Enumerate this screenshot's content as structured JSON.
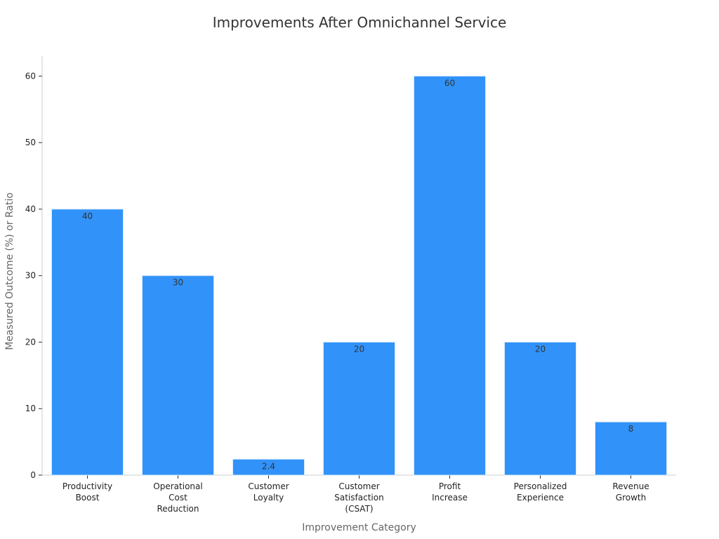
{
  "chart_data": {
    "type": "bar",
    "title": "Improvements After Omnichannel Service",
    "xlabel": "Improvement Category",
    "ylabel": "Measured Outcome (%) or Ratio",
    "categories": [
      [
        "Productivity",
        "Boost"
      ],
      [
        "Operational",
        "Cost",
        "Reduction"
      ],
      [
        "Customer",
        "Loyalty"
      ],
      [
        "Customer",
        "Satisfaction",
        "(CSAT)"
      ],
      [
        "Profit",
        "Increase"
      ],
      [
        "Personalized",
        "Experience"
      ],
      [
        "Revenue",
        "Growth"
      ]
    ],
    "values": [
      40,
      30,
      2.4,
      20,
      60,
      20,
      8
    ],
    "data_labels": [
      "40",
      "30",
      "2.4",
      "20",
      "60",
      "20",
      "8"
    ],
    "ylim": [
      0,
      63
    ],
    "yticks": [
      0,
      10,
      20,
      30,
      40,
      50,
      60
    ],
    "grid": false,
    "bar_color": "#3192f9",
    "legend": "none"
  }
}
